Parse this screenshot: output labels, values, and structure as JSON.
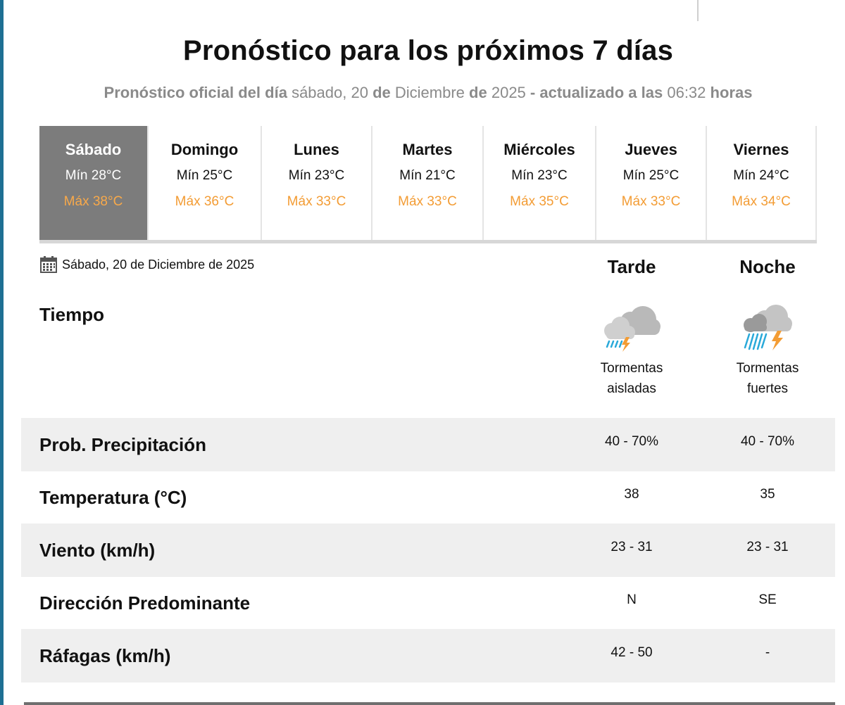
{
  "title": "Pronóstico para los próximos 7 días",
  "subtitle": {
    "prefix": "Pronóstico oficial del día",
    "weekday": "sábado, 20",
    "de1": "de",
    "month": "Diciembre",
    "de2": "de",
    "year": "2025",
    "updated": "- actualizado a las",
    "time": "06:32",
    "hours": "horas"
  },
  "days": [
    {
      "name": "Sábado",
      "min": "Mín 28°C",
      "max": "Máx 38°C",
      "active": true
    },
    {
      "name": "Domingo",
      "min": "Mín 25°C",
      "max": "Máx 36°C"
    },
    {
      "name": "Lunes",
      "min": "Mín 23°C",
      "max": "Máx 33°C"
    },
    {
      "name": "Martes",
      "min": "Mín 21°C",
      "max": "Máx 33°C"
    },
    {
      "name": "Miércoles",
      "min": "Mín 23°C",
      "max": "Máx 35°C"
    },
    {
      "name": "Jueves",
      "min": "Mín 25°C",
      "max": "Máx 33°C"
    },
    {
      "name": "Viernes",
      "min": "Mín 24°C",
      "max": "Máx 34°C"
    }
  ],
  "detail": {
    "date": "Sábado, 20 de Diciembre de 2025",
    "columns": [
      "Tarde",
      "Noche"
    ],
    "tiempo_label": "Tiempo",
    "weather": [
      {
        "icon": "isolated-storms-icon",
        "text_line1": "Tormentas",
        "text_line2": "aisladas"
      },
      {
        "icon": "heavy-storms-icon",
        "text_line1": "Tormentas",
        "text_line2": "fuertes"
      }
    ],
    "rows": [
      {
        "label": "Prob. Precipitación",
        "tarde": "40 - 70%",
        "noche": "40 - 70%"
      },
      {
        "label": "Temperatura (°C)",
        "tarde": "38",
        "noche": "35"
      },
      {
        "label": "Viento (km/h)",
        "tarde": "23 - 31",
        "noche": "23 - 31"
      },
      {
        "label": "Dirección Predominante",
        "tarde": "N",
        "noche": "SE"
      },
      {
        "label": "Ráfagas (km/h)",
        "tarde": "42 - 50",
        "noche": "-"
      }
    ]
  },
  "colors": {
    "active_day_bg": "#7c7c7c",
    "max_temp": "#f39c34",
    "row_shade": "#efefef",
    "rain": "#2aa9d9",
    "lightning": "#f39c34"
  }
}
